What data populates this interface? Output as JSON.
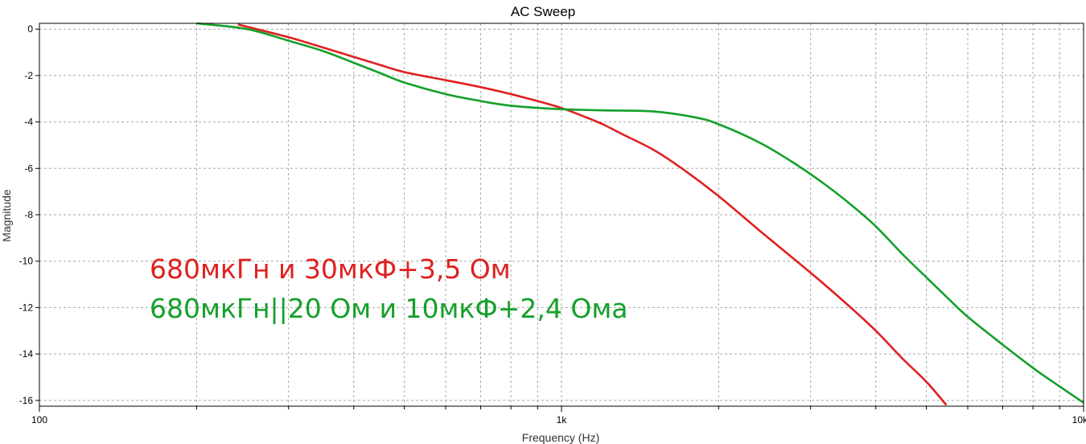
{
  "chart_data": {
    "type": "line",
    "title": "AC Sweep",
    "xlabel": "Frequency (Hz)",
    "ylabel": "Magnitude",
    "xscale": "log",
    "xlim": [
      100,
      10000
    ],
    "ylim": [
      -16.25,
      0.25
    ],
    "x_tick_labels": [
      {
        "value": 100,
        "label": "100"
      },
      {
        "value": 1000,
        "label": "1k"
      },
      {
        "value": 10000,
        "label": "10k"
      }
    ],
    "y_ticks": [
      0,
      -2,
      -4,
      -6,
      -8,
      -10,
      -12,
      -14,
      -16
    ],
    "grid": true,
    "series": [
      {
        "name": "680мкГн и 30мкФ+3,5 Ом",
        "color": "#e02020",
        "points": [
          [
            240,
            0.2
          ],
          [
            300,
            -0.35
          ],
          [
            350,
            -0.8
          ],
          [
            400,
            -1.2
          ],
          [
            450,
            -1.55
          ],
          [
            500,
            -1.85
          ],
          [
            600,
            -2.2
          ],
          [
            700,
            -2.5
          ],
          [
            800,
            -2.8
          ],
          [
            900,
            -3.1
          ],
          [
            1000,
            -3.4
          ],
          [
            1100,
            -3.75
          ],
          [
            1200,
            -4.1
          ],
          [
            1300,
            -4.5
          ],
          [
            1500,
            -5.2
          ],
          [
            1700,
            -6.0
          ],
          [
            2000,
            -7.2
          ],
          [
            2400,
            -8.7
          ],
          [
            3000,
            -10.5
          ],
          [
            3500,
            -11.8
          ],
          [
            4000,
            -13.0
          ],
          [
            4500,
            -14.2
          ],
          [
            5000,
            -15.2
          ],
          [
            5460,
            -16.2
          ]
        ]
      },
      {
        "name": "680мкГн||20 Ом и 10мкФ+2,4 Ома",
        "color": "#14a02a",
        "points": [
          [
            200,
            0.25
          ],
          [
            250,
            0.0
          ],
          [
            300,
            -0.5
          ],
          [
            350,
            -0.95
          ],
          [
            400,
            -1.45
          ],
          [
            450,
            -1.9
          ],
          [
            500,
            -2.3
          ],
          [
            600,
            -2.8
          ],
          [
            700,
            -3.1
          ],
          [
            800,
            -3.3
          ],
          [
            1000,
            -3.45
          ],
          [
            1200,
            -3.5
          ],
          [
            1500,
            -3.55
          ],
          [
            1800,
            -3.8
          ],
          [
            2000,
            -4.1
          ],
          [
            2400,
            -4.9
          ],
          [
            2800,
            -5.8
          ],
          [
            3200,
            -6.7
          ],
          [
            3600,
            -7.6
          ],
          [
            4000,
            -8.5
          ],
          [
            4500,
            -9.7
          ],
          [
            5000,
            -10.7
          ],
          [
            5500,
            -11.6
          ],
          [
            6000,
            -12.4
          ],
          [
            7000,
            -13.6
          ],
          [
            8000,
            -14.6
          ],
          [
            9000,
            -15.4
          ],
          [
            10000,
            -16.1
          ]
        ]
      }
    ],
    "annotations": [
      {
        "text": "680мкГн и 30мкФ+3,5 Ом",
        "color": "#e02020"
      },
      {
        "text": "680мкГн||20 Ом и 10мкФ+2,4 Ома",
        "color": "#14a02a"
      }
    ]
  }
}
